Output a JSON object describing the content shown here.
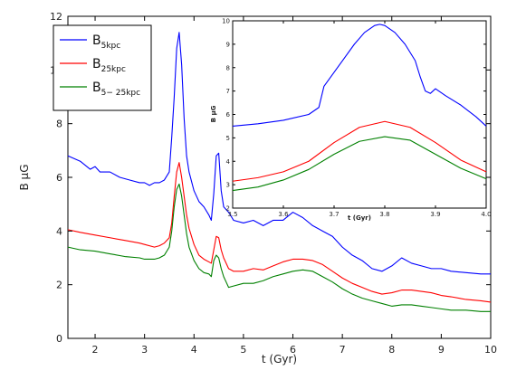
{
  "chart_data": [
    {
      "type": "line",
      "xlabel": "t (Gyr)",
      "ylabel": "B μG",
      "xlim": [
        1.45,
        10
      ],
      "ylim": [
        0,
        12
      ],
      "xticks": [
        2,
        3,
        4,
        5,
        6,
        7,
        8,
        9,
        10
      ],
      "yticks": [
        0,
        2,
        4,
        6,
        8,
        10,
        12
      ],
      "legend": {
        "placement": "upper-left",
        "entries": [
          {
            "main": "B",
            "sub": "5kpc",
            "color": "#0000ff"
          },
          {
            "main": "B",
            "sub": "25kpc",
            "color": "#ff0000"
          },
          {
            "main": "B",
            "sub": "5− 25kpc",
            "color": "#008000"
          }
        ]
      },
      "series": [
        {
          "color": "#0000ff",
          "x": [
            1.45,
            1.7,
            1.9,
            2.0,
            2.1,
            2.3,
            2.5,
            2.7,
            2.9,
            3.0,
            3.1,
            3.2,
            3.3,
            3.4,
            3.5,
            3.55,
            3.6,
            3.65,
            3.7,
            3.75,
            3.8,
            3.85,
            3.9,
            4.0,
            4.1,
            4.2,
            4.3,
            4.35,
            4.4,
            4.45,
            4.5,
            4.55,
            4.6,
            4.7,
            4.8,
            5.0,
            5.2,
            5.4,
            5.6,
            5.8,
            6.0,
            6.2,
            6.4,
            6.6,
            6.8,
            7.0,
            7.2,
            7.4,
            7.6,
            7.8,
            8.0,
            8.2,
            8.4,
            8.6,
            8.8,
            9.0,
            9.2,
            9.5,
            9.8,
            10.0
          ],
          "y": [
            6.8,
            6.6,
            6.3,
            6.4,
            6.2,
            6.2,
            6.0,
            5.9,
            5.8,
            5.8,
            5.7,
            5.8,
            5.8,
            5.9,
            6.2,
            7.5,
            9.0,
            10.8,
            11.4,
            10.2,
            8.2,
            6.8,
            6.2,
            5.5,
            5.1,
            4.9,
            4.6,
            4.4,
            5.4,
            6.8,
            6.9,
            5.5,
            4.9,
            4.7,
            4.4,
            4.3,
            4.4,
            4.2,
            4.4,
            4.4,
            4.7,
            4.5,
            4.2,
            4.0,
            3.8,
            3.4,
            3.1,
            2.9,
            2.6,
            2.5,
            2.7,
            3.0,
            2.8,
            2.7,
            2.6,
            2.6,
            2.5,
            2.45,
            2.4,
            2.4
          ]
        },
        {
          "color": "#ff0000",
          "x": [
            1.45,
            1.7,
            2.0,
            2.3,
            2.6,
            2.9,
            3.0,
            3.2,
            3.3,
            3.4,
            3.5,
            3.55,
            3.6,
            3.65,
            3.7,
            3.75,
            3.8,
            3.85,
            3.9,
            4.0,
            4.1,
            4.2,
            4.3,
            4.35,
            4.4,
            4.45,
            4.5,
            4.55,
            4.6,
            4.7,
            4.8,
            5.0,
            5.2,
            5.4,
            5.6,
            5.8,
            6.0,
            6.2,
            6.4,
            6.6,
            6.8,
            7.0,
            7.2,
            7.4,
            7.6,
            7.8,
            8.0,
            8.2,
            8.4,
            8.6,
            8.8,
            9.0,
            9.2,
            9.5,
            9.8,
            10.0
          ],
          "y": [
            4.05,
            3.95,
            3.85,
            3.75,
            3.65,
            3.55,
            3.5,
            3.4,
            3.45,
            3.55,
            3.75,
            4.3,
            5.3,
            6.2,
            6.55,
            6.0,
            5.3,
            4.6,
            4.1,
            3.5,
            3.1,
            2.95,
            2.85,
            2.8,
            3.3,
            3.8,
            3.75,
            3.3,
            3.0,
            2.6,
            2.5,
            2.5,
            2.6,
            2.55,
            2.7,
            2.85,
            2.95,
            2.95,
            2.9,
            2.75,
            2.5,
            2.25,
            2.05,
            1.9,
            1.75,
            1.65,
            1.7,
            1.8,
            1.8,
            1.75,
            1.7,
            1.6,
            1.55,
            1.45,
            1.4,
            1.35
          ]
        },
        {
          "color": "#008000",
          "x": [
            1.45,
            1.7,
            2.0,
            2.3,
            2.6,
            2.9,
            3.0,
            3.2,
            3.3,
            3.4,
            3.5,
            3.55,
            3.6,
            3.65,
            3.7,
            3.75,
            3.8,
            3.85,
            3.9,
            4.0,
            4.1,
            4.2,
            4.3,
            4.35,
            4.4,
            4.45,
            4.5,
            4.55,
            4.6,
            4.65,
            4.7,
            4.8,
            5.0,
            5.2,
            5.4,
            5.6,
            5.8,
            6.0,
            6.2,
            6.4,
            6.6,
            6.8,
            7.0,
            7.2,
            7.4,
            7.6,
            7.8,
            8.0,
            8.2,
            8.4,
            8.6,
            8.8,
            9.0,
            9.2,
            9.5,
            9.8,
            10.0
          ],
          "y": [
            3.4,
            3.3,
            3.25,
            3.15,
            3.05,
            3.0,
            2.95,
            2.95,
            3.0,
            3.1,
            3.4,
            4.0,
            4.9,
            5.55,
            5.75,
            5.3,
            4.6,
            3.9,
            3.4,
            2.9,
            2.6,
            2.45,
            2.4,
            2.3,
            2.9,
            3.1,
            3.0,
            2.6,
            2.3,
            2.1,
            1.9,
            1.95,
            2.05,
            2.05,
            2.15,
            2.3,
            2.4,
            2.5,
            2.55,
            2.5,
            2.3,
            2.1,
            1.85,
            1.65,
            1.5,
            1.4,
            1.3,
            1.2,
            1.25,
            1.25,
            1.2,
            1.15,
            1.1,
            1.05,
            1.05,
            1.0,
            1.0
          ]
        }
      ]
    },
    {
      "type": "line",
      "xlabel": "t (Gyr)",
      "ylabel": "B μG",
      "xlim": [
        3.5,
        4.0
      ],
      "ylim": [
        2,
        10
      ],
      "xticks": [
        3.5,
        3.6,
        3.7,
        3.8,
        3.9,
        4.0
      ],
      "yticks": [
        2,
        3,
        4,
        5,
        6,
        7,
        8,
        9,
        10
      ],
      "series": [
        {
          "color": "#0000ff",
          "x": [
            3.5,
            3.55,
            3.6,
            3.65,
            3.67,
            3.68,
            3.69,
            3.7,
            3.72,
            3.74,
            3.76,
            3.78,
            3.79,
            3.8,
            3.82,
            3.84,
            3.86,
            3.87,
            3.88,
            3.89,
            3.9,
            3.92,
            3.95,
            3.98,
            4.0
          ],
          "y": [
            5.5,
            5.6,
            5.75,
            6.0,
            6.3,
            7.2,
            7.5,
            7.8,
            8.4,
            9.0,
            9.5,
            9.8,
            9.85,
            9.8,
            9.5,
            9.0,
            8.3,
            7.6,
            7.0,
            6.9,
            7.1,
            6.8,
            6.4,
            5.9,
            5.5
          ]
        },
        {
          "color": "#ff0000",
          "x": [
            3.5,
            3.55,
            3.6,
            3.65,
            3.7,
            3.75,
            3.8,
            3.85,
            3.9,
            3.95,
            4.0
          ],
          "y": [
            3.15,
            3.3,
            3.55,
            4.0,
            4.8,
            5.45,
            5.7,
            5.45,
            4.8,
            4.05,
            3.55
          ]
        },
        {
          "color": "#008000",
          "x": [
            3.5,
            3.55,
            3.6,
            3.65,
            3.7,
            3.75,
            3.8,
            3.85,
            3.9,
            3.95,
            4.0
          ],
          "y": [
            2.75,
            2.9,
            3.2,
            3.65,
            4.3,
            4.85,
            5.05,
            4.9,
            4.3,
            3.7,
            3.25
          ]
        }
      ]
    }
  ]
}
